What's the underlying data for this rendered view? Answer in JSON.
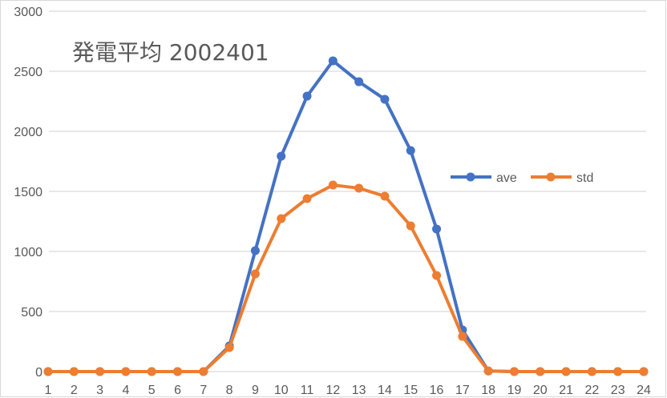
{
  "chart_data": {
    "type": "line",
    "title": "発電平均 2002401",
    "xlabel": "",
    "ylabel": "",
    "x": [
      1,
      2,
      3,
      4,
      5,
      6,
      7,
      8,
      9,
      10,
      11,
      12,
      13,
      14,
      15,
      16,
      17,
      18,
      19,
      20,
      21,
      22,
      23,
      24
    ],
    "categories": [
      "1",
      "2",
      "3",
      "4",
      "5",
      "6",
      "7",
      "8",
      "9",
      "10",
      "11",
      "12",
      "13",
      "14",
      "15",
      "16",
      "17",
      "18",
      "19",
      "20",
      "21",
      "22",
      "23",
      "24"
    ],
    "series": [
      {
        "name": "ave",
        "color": "#4472C4",
        "values": [
          0,
          0,
          0,
          0,
          0,
          0,
          0,
          213,
          1007,
          1793,
          2293,
          2587,
          2413,
          2267,
          1840,
          1187,
          347,
          5,
          0,
          0,
          0,
          0,
          0,
          0
        ]
      },
      {
        "name": "std",
        "color": "#ED7D31",
        "values": [
          0,
          0,
          0,
          0,
          0,
          0,
          0,
          200,
          813,
          1273,
          1440,
          1553,
          1527,
          1460,
          1213,
          800,
          293,
          5,
          0,
          0,
          0,
          0,
          0,
          0
        ]
      }
    ],
    "ylim": [
      0,
      3000
    ],
    "yticks": [
      0,
      500,
      1000,
      1500,
      2000,
      2500,
      3000
    ],
    "grid": true,
    "legend_position": "right-inside"
  }
}
